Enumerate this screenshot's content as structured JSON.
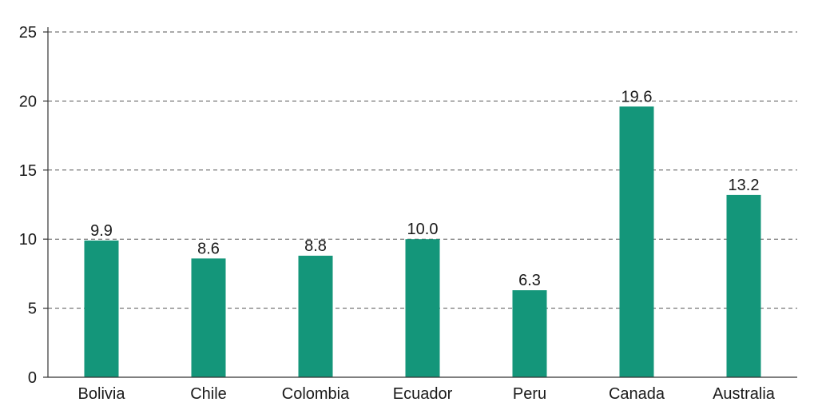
{
  "chart_data": {
    "type": "bar",
    "categories": [
      "Bolivia",
      "Chile",
      "Colombia",
      "Ecuador",
      "Peru",
      "Canada",
      "Australia"
    ],
    "values": [
      9.9,
      8.6,
      8.8,
      10.0,
      6.3,
      19.6,
      13.2
    ],
    "value_labels": [
      "9.9",
      "8.6",
      "8.8",
      "10.0",
      "6.3",
      "19.6",
      "13.2"
    ],
    "title": "",
    "xlabel": "",
    "ylabel": "",
    "ylim": [
      0,
      25
    ],
    "yticks": [
      "0",
      "5",
      "10",
      "15",
      "20",
      "25"
    ],
    "grid": true,
    "legend": "none",
    "bar_color": "#14967a"
  }
}
